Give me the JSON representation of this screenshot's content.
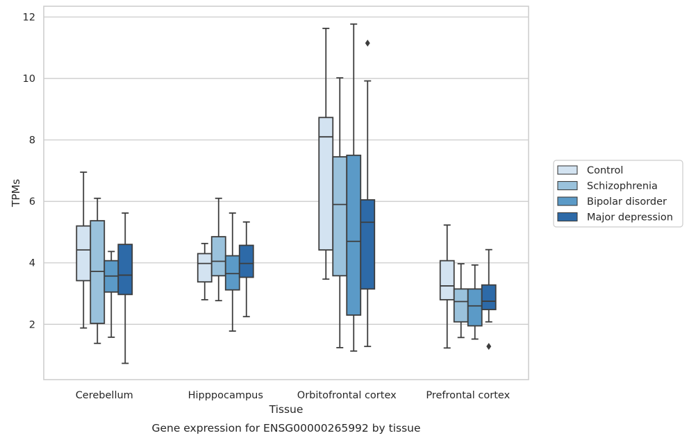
{
  "chart_data": {
    "type": "box",
    "xlabel": "Tissue",
    "ylabel": "TPMs",
    "caption": "Gene expression for ENSG00000265992 by tissue",
    "categories": [
      "Cerebellum",
      "Hipppocampus",
      "Orbitofrontal cortex",
      "Prefrontal cortex"
    ],
    "ylim": [
      0.2,
      12.35
    ],
    "yticks": [
      2,
      4,
      6,
      8,
      10,
      12
    ],
    "grid": true,
    "legend_position": "right",
    "series": [
      {
        "name": "Control",
        "color": "#d3e3f1",
        "boxes": [
          {
            "whislo": 1.88,
            "q1": 3.42,
            "med": 4.42,
            "q3": 5.2,
            "whishi": 6.95,
            "fliers": []
          },
          {
            "whislo": 2.8,
            "q1": 3.38,
            "med": 3.98,
            "q3": 4.3,
            "whishi": 4.63,
            "fliers": []
          },
          {
            "whislo": 3.47,
            "q1": 4.42,
            "med": 8.1,
            "q3": 8.73,
            "whishi": 11.63,
            "fliers": []
          },
          {
            "whislo": 1.23,
            "q1": 2.8,
            "med": 3.25,
            "q3": 4.07,
            "whishi": 5.23,
            "fliers": []
          }
        ]
      },
      {
        "name": "Schizophrenia",
        "color": "#9ac2dc",
        "boxes": [
          {
            "whislo": 1.38,
            "q1": 2.03,
            "med": 3.72,
            "q3": 5.37,
            "whishi": 6.1,
            "fliers": []
          },
          {
            "whislo": 2.77,
            "q1": 3.58,
            "med": 4.05,
            "q3": 4.85,
            "whishi": 6.1,
            "fliers": []
          },
          {
            "whislo": 1.24,
            "q1": 3.58,
            "med": 5.9,
            "q3": 7.45,
            "whishi": 10.02,
            "fliers": []
          },
          {
            "whislo": 1.57,
            "q1": 2.08,
            "med": 2.74,
            "q3": 3.15,
            "whishi": 3.97,
            "fliers": []
          }
        ]
      },
      {
        "name": "Bipolar disorder",
        "color": "#5b9ac7",
        "boxes": [
          {
            "whislo": 1.58,
            "q1": 3.05,
            "med": 3.57,
            "q3": 4.07,
            "whishi": 4.37,
            "fliers": []
          },
          {
            "whislo": 1.78,
            "q1": 3.12,
            "med": 3.65,
            "q3": 4.23,
            "whishi": 5.62,
            "fliers": []
          },
          {
            "whislo": 1.13,
            "q1": 2.3,
            "med": 4.7,
            "q3": 7.5,
            "whishi": 11.77,
            "fliers": []
          },
          {
            "whislo": 1.52,
            "q1": 1.95,
            "med": 2.6,
            "q3": 3.15,
            "whishi": 3.93,
            "fliers": []
          }
        ]
      },
      {
        "name": "Major depression",
        "color": "#2d6aa8",
        "boxes": [
          {
            "whislo": 0.73,
            "q1": 2.97,
            "med": 3.6,
            "q3": 4.6,
            "whishi": 5.62,
            "fliers": []
          },
          {
            "whislo": 2.25,
            "q1": 3.53,
            "med": 3.98,
            "q3": 4.57,
            "whishi": 5.33,
            "fliers": []
          },
          {
            "whislo": 1.28,
            "q1": 3.15,
            "med": 5.32,
            "q3": 6.05,
            "whishi": 9.92,
            "fliers": [
              11.15
            ]
          },
          {
            "whislo": 2.08,
            "q1": 2.48,
            "med": 2.75,
            "q3": 3.28,
            "whishi": 4.43,
            "fliers": [
              1.28
            ]
          }
        ]
      }
    ]
  }
}
